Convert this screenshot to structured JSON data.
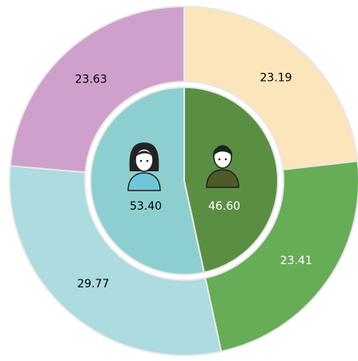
{
  "chart_data": {
    "type": "donut",
    "outer": {
      "values": [
        23.19,
        23.41,
        29.77,
        23.63
      ],
      "value_labels": [
        "23.19",
        "23.41",
        "29.77",
        "23.63"
      ],
      "colors": [
        "#fbe5bb",
        "#67ac56",
        "#acdbe0",
        "#cfa0cc"
      ],
      "label_colors": [
        "#000000",
        "#ffffff",
        "#000000",
        "#000000"
      ]
    },
    "inner": {
      "values": [
        46.6,
        53.4
      ],
      "value_labels": [
        "46.60",
        "53.40"
      ],
      "colors": [
        "#5a8f43",
        "#8dcfd0"
      ],
      "label_colors": [
        "#ffffff",
        "#000000"
      ]
    }
  }
}
